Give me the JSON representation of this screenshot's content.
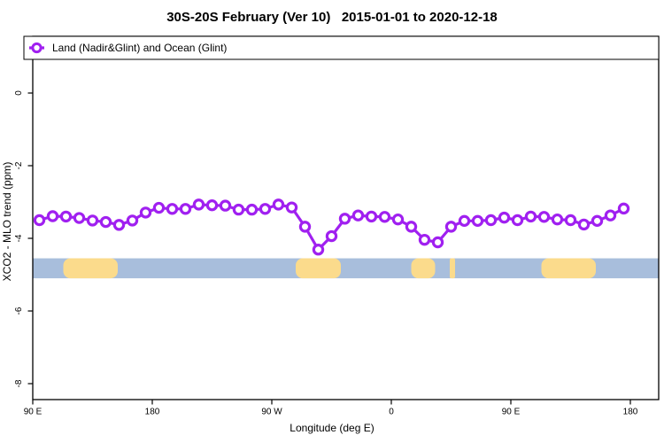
{
  "title": "30S-20S February (Ver 10)   2015-01-01 to 2020-12-18",
  "legend": {
    "label": "Land (Nadir&Glint) and Ocean (Glint)",
    "marker": "open-circle-on-line",
    "color": "#A020F0"
  },
  "axes": {
    "x_label": "Longitude (deg E)",
    "y_label": "XCO2 - MLO trend (ppm)",
    "x_ticks": [
      {
        "deg": 90,
        "label": "90 E"
      },
      {
        "deg": 180,
        "label": "180"
      },
      {
        "deg": 270,
        "label": "90 W"
      },
      {
        "deg": 360,
        "label": "0"
      },
      {
        "deg": 450,
        "label": "90 E"
      },
      {
        "deg": 540,
        "label": "180"
      }
    ],
    "y_ticks": [
      {
        "value": 0,
        "label": "0"
      },
      {
        "value": -2,
        "label": "-2"
      },
      {
        "value": -4,
        "label": "-4"
      },
      {
        "value": -6,
        "label": "-6"
      },
      {
        "value": -8,
        "label": "-8"
      }
    ]
  },
  "chart_data": {
    "type": "line",
    "title": "30S-20S February (Ver 10)  2015-01-01 to 2020-12-18",
    "xlabel": "Longitude (deg E)",
    "ylabel": "XCO2 - MLO trend (ppm)",
    "axis_note": "x axis wraps eastward from 90E through 180, 90W, 0, 90E to 180; degrees below are continuous deg E (90 to 540), 10-degree bins",
    "x_range_deg": [
      90,
      561
    ],
    "y_range": [
      -8.45,
      1.55
    ],
    "grid": false,
    "legend_position": "top-left",
    "x_deg": [
      95,
      105,
      115,
      125,
      135,
      145,
      155,
      165,
      175,
      185,
      195,
      205,
      215,
      225,
      235,
      245,
      255,
      265,
      275,
      285,
      295,
      305,
      315,
      325,
      335,
      345,
      355,
      365,
      375,
      385,
      395,
      405,
      415,
      425,
      435,
      445,
      455,
      465,
      475,
      485,
      495,
      505,
      515,
      525,
      535
    ],
    "series": [
      {
        "name": "Land (Nadir&Glint) and Ocean (Glint)",
        "color": "#A020F0",
        "marker": "open-circle",
        "values": [
          -3.5,
          -3.39,
          -3.4,
          -3.44,
          -3.51,
          -3.55,
          -3.63,
          -3.51,
          -3.29,
          -3.16,
          -3.19,
          -3.19,
          -3.07,
          -3.09,
          -3.1,
          -3.21,
          -3.21,
          -3.19,
          -3.07,
          -3.15,
          -3.68,
          -4.31,
          -3.94,
          -3.46,
          -3.37,
          -3.4,
          -3.41,
          -3.48,
          -3.68,
          -4.04,
          -4.11,
          -3.68,
          -3.52,
          -3.52,
          -3.5,
          -3.43,
          -3.5,
          -3.4,
          -3.41,
          -3.48,
          -3.5,
          -3.62,
          -3.52,
          -3.37,
          -3.18
        ]
      }
    ],
    "surface_band": {
      "description": "land/ocean indicator strip",
      "value_top": -4.55,
      "value_bottom": -5.1,
      "ocean_color": "#A8BEDC",
      "land_color": "#FBDB8C",
      "land_segments_deg": [
        [
          113,
          154
        ],
        [
          288,
          322
        ],
        [
          375,
          393
        ],
        [
          404,
          408
        ],
        [
          473,
          514
        ]
      ]
    }
  }
}
